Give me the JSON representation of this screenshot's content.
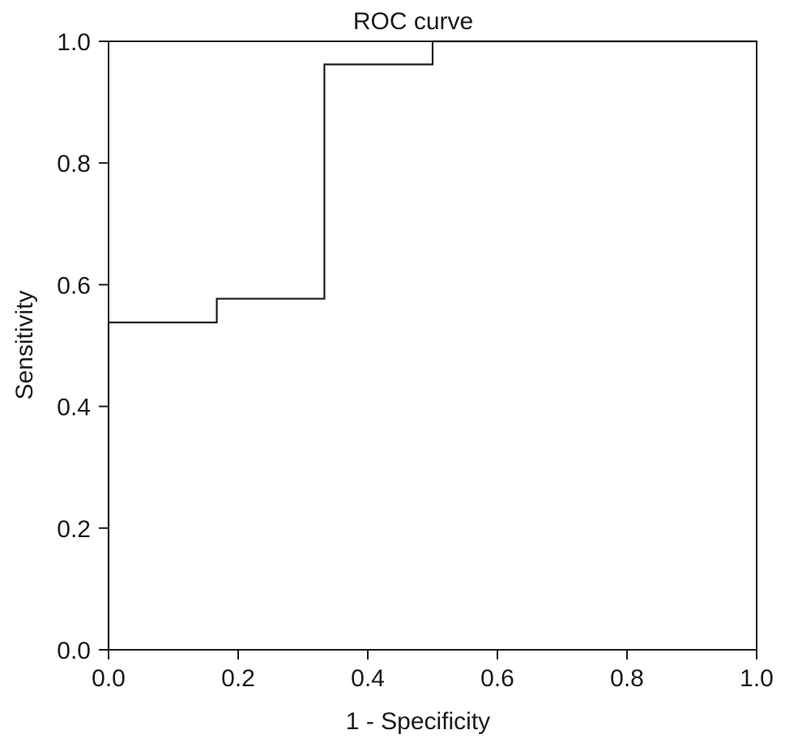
{
  "chart_data": {
    "type": "line",
    "title": "ROC curve",
    "xlabel": "1 - Specificity",
    "ylabel": "Sensitivity",
    "xlim": [
      0.0,
      1.0
    ],
    "ylim": [
      0.0,
      1.0
    ],
    "x_ticks": [
      "0.0",
      "0.2",
      "0.4",
      "0.6",
      "0.8",
      "1.0"
    ],
    "y_ticks": [
      "0.0",
      "0.2",
      "0.4",
      "0.6",
      "0.8",
      "1.0"
    ],
    "grid": false,
    "legend": "none",
    "line_color": "#1a1a1a",
    "series": [
      {
        "step": true,
        "x": [
          0.0,
          0.0,
          0.167,
          0.167,
          0.333,
          0.333,
          0.5,
          0.5,
          1.0
        ],
        "y": [
          0.0,
          0.538,
          0.538,
          0.577,
          0.577,
          0.962,
          0.962,
          1.0,
          1.0
        ]
      }
    ]
  }
}
